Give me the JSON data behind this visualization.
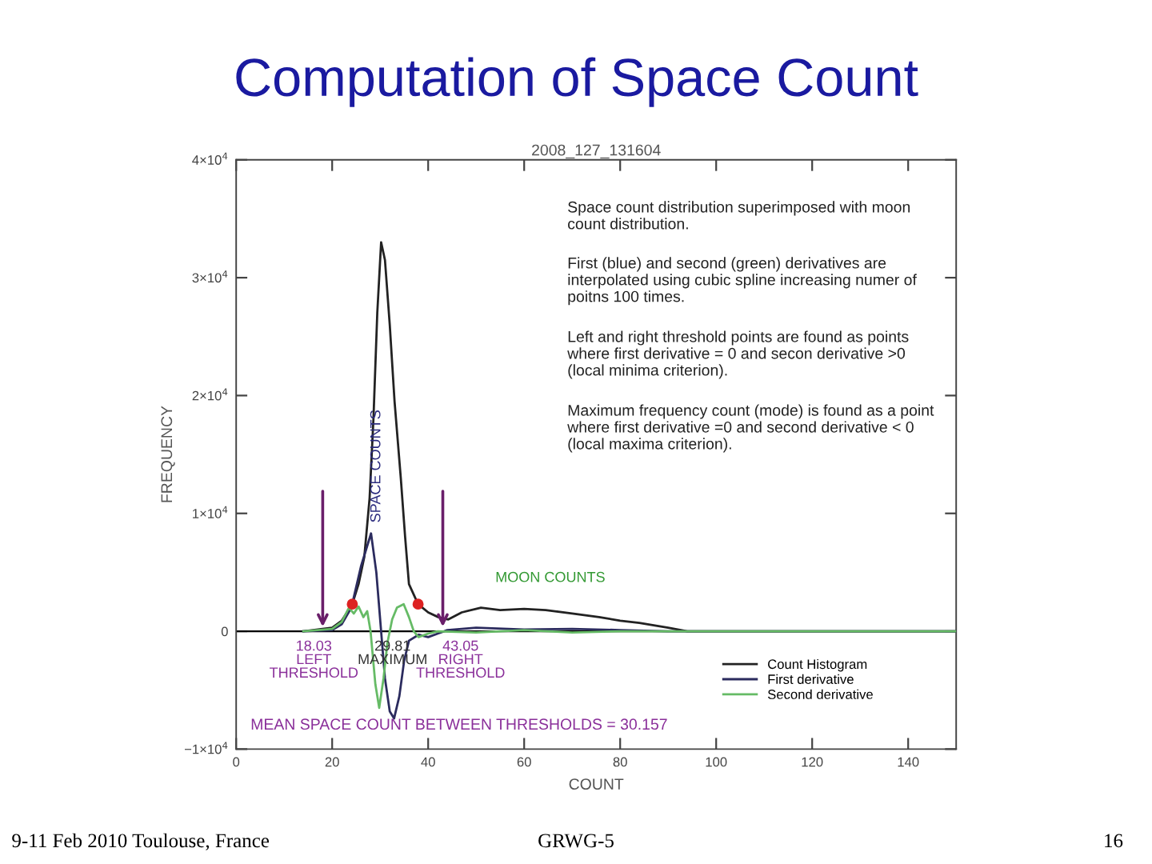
{
  "chart_data": {
    "type": "line",
    "title": "Computation of Space Count",
    "subtitle": "2008_127_131604",
    "xlabel": "COUNT",
    "ylabel": "FREQUENCY",
    "xlim": [
      0,
      150
    ],
    "xticks": [
      0,
      20,
      40,
      60,
      80,
      100,
      120,
      140
    ],
    "ylim": [
      -10000,
      40000
    ],
    "yticks": [
      {
        "value": -10000,
        "label": "−1×10$^{4}$"
      },
      0,
      {
        "value": 10000,
        "label": "1×10$^{4}$"
      },
      {
        "value": 20000,
        "label": "2×10$^{4}$"
      },
      {
        "value": 30000,
        "label": "3×10$^{4}$"
      },
      {
        "value": 40000,
        "label": "4×10$^{4}$"
      }
    ],
    "grid": false,
    "legend": "bottom right",
    "ref_lines": [
      {
        "axis": "y",
        "value": 0,
        "color": "#000000"
      }
    ],
    "line_style": "solid",
    "series": [
      {
        "name": "Count Histogram",
        "color": "#222222",
        "x": [
          14,
          20,
          22,
          24.2,
          25.5,
          26.7,
          27.8,
          28.6,
          29.4,
          30.2,
          31,
          32,
          33,
          34.3,
          35.2,
          36,
          37.9,
          40,
          42.1,
          44.2,
          47,
          51,
          55,
          60,
          64.5,
          70,
          75.6,
          80,
          84,
          90,
          94,
          150
        ],
        "values": [
          0,
          300,
          900,
          2300,
          4000,
          6300,
          11300,
          18000,
          27000,
          33000,
          31500,
          26000,
          19500,
          13000,
          8000,
          4000,
          2300,
          1600,
          1200,
          1000,
          1600,
          2000,
          1800,
          1900,
          1800,
          1500,
          1200,
          900,
          700,
          300,
          0,
          0
        ]
      },
      {
        "name": "First derivative",
        "color": "#2b2b5e",
        "x": [
          14,
          20,
          22,
          24,
          26,
          28.1,
          29.2,
          30.2,
          31,
          32,
          32.9,
          34,
          35,
          36,
          38,
          40,
          42,
          44,
          50,
          60,
          70,
          80,
          90,
          150
        ],
        "values": [
          0,
          100,
          600,
          2000,
          5500,
          8300,
          5000,
          0,
          -4000,
          -6800,
          -7400,
          -5500,
          -2500,
          -800,
          -300,
          -500,
          -200,
          100,
          300,
          150,
          200,
          100,
          0,
          0
        ]
      },
      {
        "name": "Second derivative",
        "color": "#66bb66",
        "x": [
          14,
          20,
          22,
          23.5,
          24.5,
          25.5,
          26.5,
          27.3,
          28,
          29,
          29.8,
          30.7,
          31.5,
          32.5,
          33.5,
          34.9,
          36,
          37,
          38,
          40,
          42,
          50,
          60,
          70,
          80,
          150
        ],
        "values": [
          0,
          200,
          800,
          2000,
          1500,
          2100,
          1200,
          1700,
          0,
          -4500,
          -6500,
          -4000,
          -1000,
          1000,
          2000,
          2300,
          1200,
          0,
          -500,
          -200,
          0,
          -100,
          100,
          -100,
          0,
          0
        ]
      },
      {
        "type": "scatter",
        "marker": "circle",
        "color": "#dd2222",
        "x": [
          24.2,
          37.9
        ],
        "values": [
          2300,
          2300
        ]
      }
    ],
    "annotations": [
      "Space count distribution superimposed with moon\ncount distribution.",
      "First (blue) and second (green) derivatives are\ninterpolated using cubic spline increasing numer of\npoitns 100 times.",
      "Left and right threshold points are found as points\nwhere first derivative = 0 and secon derivative >0\n(local minima criterion).",
      "Maximum frequency count (mode) is found as a point\nwhere first derivative =0 and second derivative < 0\n(local maxima criterion).",
      "SPACE COUNTS",
      "MOON COUNTS",
      {
        "text": "18.03\nLEFT\nTHRESHOLD",
        "x": 18.03,
        "y": 0
      },
      {
        "text": "29.81\nMAXIMUM",
        "x": 29.81,
        "y": 0
      },
      {
        "text": "43.05\nRIGHT\nTHRESHOLD",
        "x": 43.05,
        "y": 0
      },
      "MEAN SPACE COUNT BETWEEN THRESHOLDS = 30.157",
      "9-11 Feb 2010 Toulouse, France",
      "GRWG-5",
      "16"
    ]
  }
}
